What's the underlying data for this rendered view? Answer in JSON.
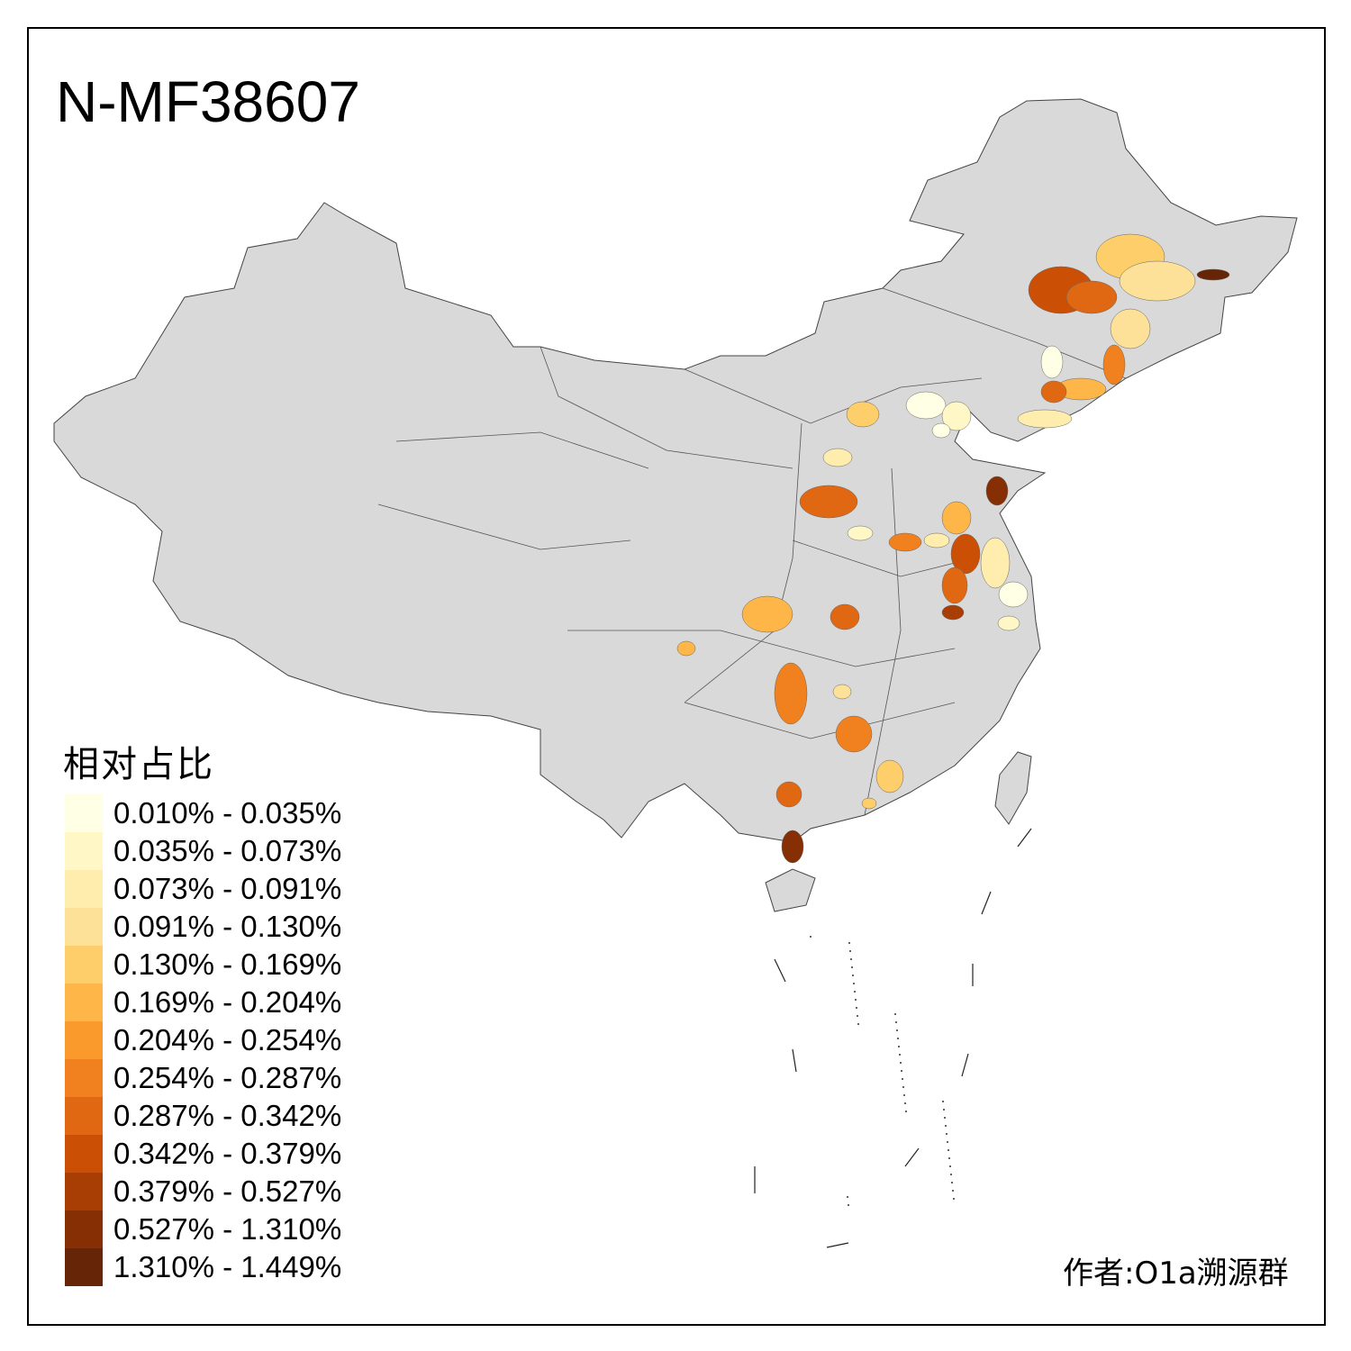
{
  "title": "N-MF38607",
  "legend": {
    "title": "相对占比",
    "items": [
      {
        "label": "0.010% - 0.035%",
        "color": "#FFFFE5"
      },
      {
        "label": "0.035% - 0.073%",
        "color": "#FFF8C6"
      },
      {
        "label": "0.073% - 0.091%",
        "color": "#FEEDAD"
      },
      {
        "label": "0.091% - 0.130%",
        "color": "#FEE199"
      },
      {
        "label": "0.130% - 0.169%",
        "color": "#FECE6A"
      },
      {
        "label": "0.169% - 0.204%",
        "color": "#FEB649"
      },
      {
        "label": "0.204% - 0.254%",
        "color": "#FB9A2C"
      },
      {
        "label": "0.254% - 0.287%",
        "color": "#F0811E"
      },
      {
        "label": "0.287% - 0.342%",
        "color": "#E06812"
      },
      {
        "label": "0.342% - 0.379%",
        "color": "#CB5006"
      },
      {
        "label": "0.379% - 0.527%",
        "color": "#A83E04"
      },
      {
        "label": "0.527% - 1.310%",
        "color": "#862F05"
      },
      {
        "label": "1.310% - 1.449%",
        "color": "#662506"
      }
    ]
  },
  "base_fill": "#D9D9D9",
  "author": "作者:O1a溯源群"
}
